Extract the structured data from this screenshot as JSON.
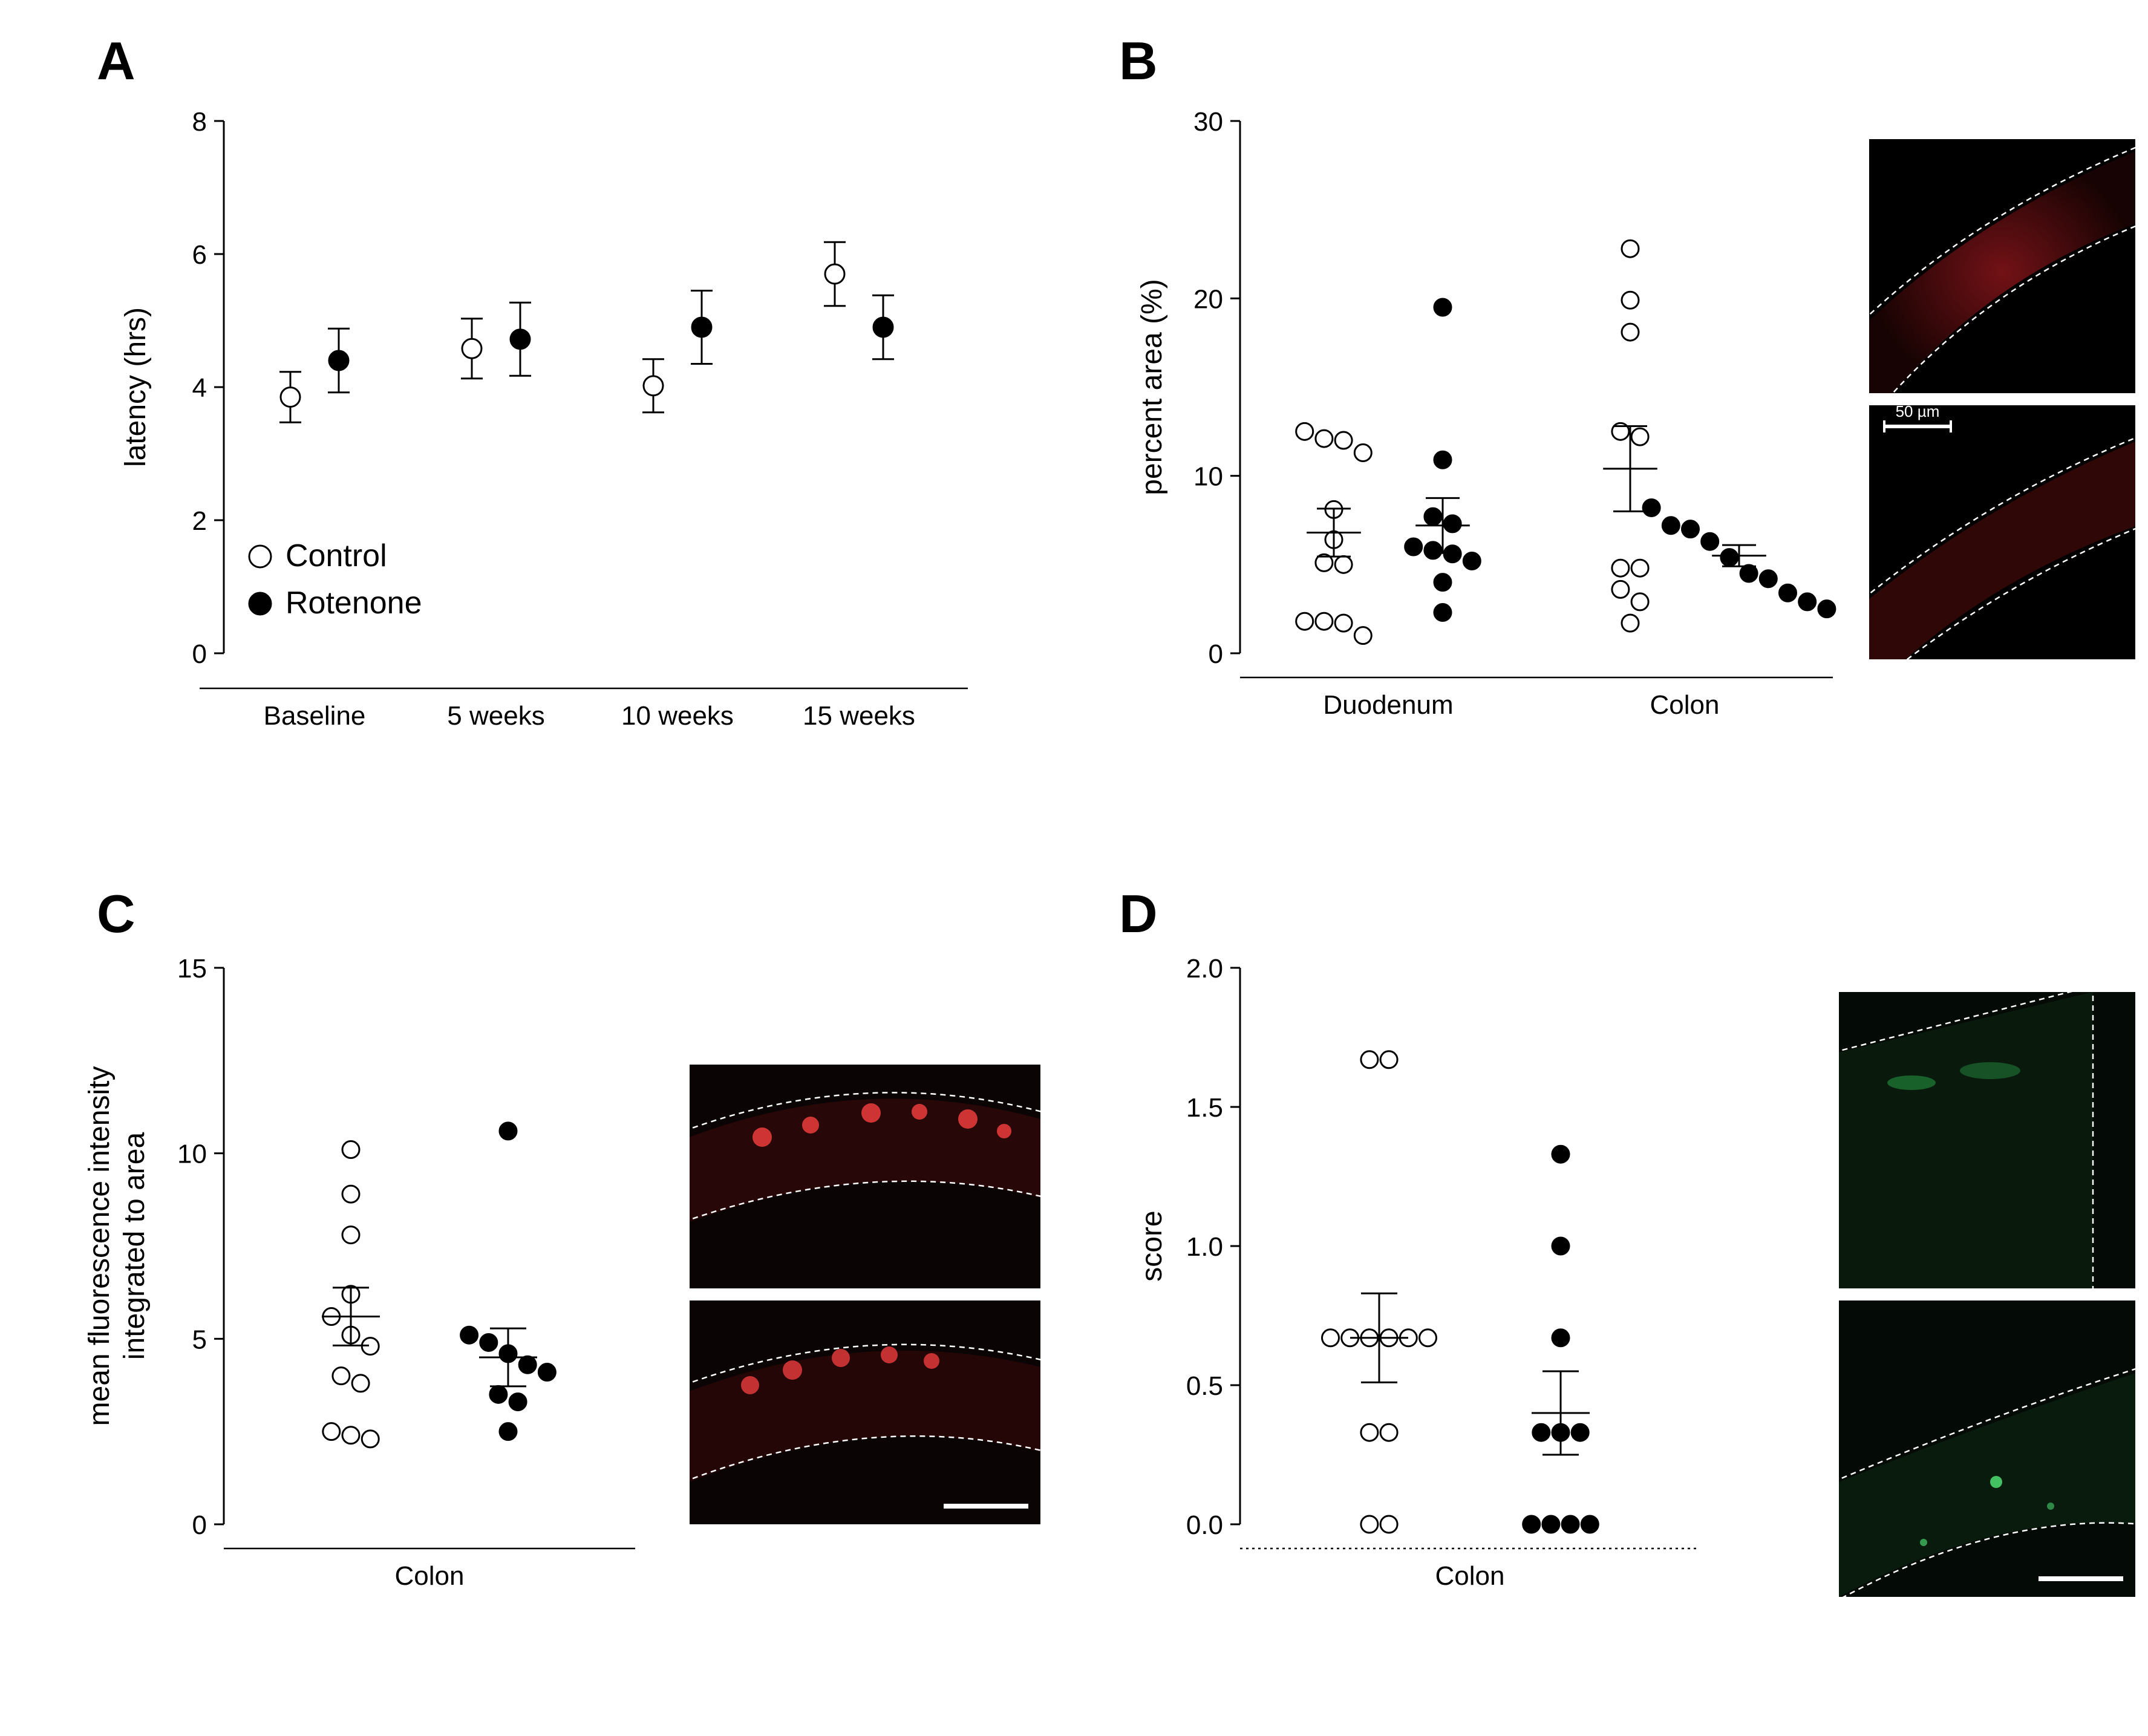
{
  "colors": {
    "bg": "#ffffff",
    "axis": "#000000",
    "open_fill": "#ffffff",
    "marker_stroke": "#000000",
    "filled_fill": "#000000",
    "micro_red": "#d02028",
    "micro_red_dark": "#3a0606",
    "micro_green": "#2aa84a",
    "micro_green_dark": "#0a2a0f",
    "scalebar": "#ffffff"
  },
  "legend": {
    "control": "Control",
    "rotenone": "Rotenone"
  },
  "panelA": {
    "label": "A",
    "ylabel": "latency (hrs)",
    "ylim": [
      0,
      8
    ],
    "ytick_step": 2,
    "categories": [
      "Baseline",
      "5 weeks",
      "10 weeks",
      "15 weeks"
    ],
    "control": {
      "mean": [
        3.85,
        4.58,
        4.02,
        5.7
      ],
      "err": [
        0.38,
        0.45,
        0.4,
        0.48
      ]
    },
    "rotenone": {
      "mean": [
        4.4,
        4.72,
        4.9,
        4.9
      ],
      "err": [
        0.48,
        0.55,
        0.55,
        0.48
      ]
    },
    "marker_r": 16
  },
  "panelB": {
    "label": "B",
    "ylabel": "percent area (%)",
    "ylim": [
      0,
      30
    ],
    "ytick_step": 10,
    "categories": [
      "Duodenum",
      "Colon"
    ],
    "groups": {
      "Duodenum": {
        "control": {
          "points": [
            12.5,
            12.1,
            12.0,
            11.3,
            8.1,
            6.4,
            5.1,
            5.0,
            1.8,
            1.8,
            1.7,
            1.0
          ],
          "mean": 6.8,
          "err": 1.35
        },
        "rotenone": {
          "points": [
            19.5,
            10.9,
            7.7,
            7.3,
            6.0,
            5.8,
            5.6,
            5.2,
            4.0,
            2.3
          ],
          "mean": 7.2,
          "err": 1.55
        }
      },
      "Colon": {
        "control": {
          "points": [
            22.8,
            19.9,
            18.1,
            12.5,
            12.2,
            4.8,
            4.8,
            3.6,
            2.9,
            1.7
          ],
          "mean": 10.4,
          "err": 2.4
        },
        "rotenone": {
          "points": [
            8.2,
            7.2,
            7.0,
            6.3,
            5.4,
            4.5,
            4.2,
            3.4,
            2.9,
            2.5
          ],
          "mean": 5.5,
          "err": 0.6
        }
      }
    },
    "marker_r": 14,
    "scalebar_label": "50 µm"
  },
  "panelC": {
    "label": "C",
    "ylabel": "mean fluorescence intensity\nintegrated to area",
    "ylim": [
      0,
      15
    ],
    "ytick_step": 5,
    "categories": [
      "Colon"
    ],
    "control": {
      "points": [
        10.1,
        8.9,
        7.8,
        6.2,
        5.6,
        5.1,
        4.8,
        4.0,
        3.8,
        2.5,
        2.4,
        2.3
      ],
      "mean": 5.6,
      "err": 0.78
    },
    "rotenone": {
      "points": [
        10.6,
        5.1,
        4.9,
        4.6,
        4.3,
        4.1,
        3.5,
        3.3,
        2.5
      ],
      "mean": 4.5,
      "err": 0.78
    },
    "marker_r": 14
  },
  "panelD": {
    "label": "D",
    "ylabel": "score",
    "ylim": [
      0.0,
      2.0
    ],
    "ytick_step": 0.5,
    "categories": [
      "Colon"
    ],
    "control": {
      "points": [
        1.67,
        1.67,
        0.67,
        0.67,
        0.67,
        0.67,
        0.67,
        0.67,
        0.33,
        0.33,
        0.0,
        0.0
      ],
      "mean": 0.67,
      "err": 0.16
    },
    "rotenone": {
      "points": [
        1.33,
        1.0,
        0.67,
        0.33,
        0.33,
        0.33,
        0.0,
        0.0,
        0.0,
        0.0
      ],
      "mean": 0.4,
      "err": 0.15
    },
    "marker_r": 14
  },
  "typography": {
    "panel_label_fontsize": 88,
    "axis_label_fontsize": 48,
    "tick_fontsize": 44,
    "legend_fontsize": 52
  }
}
